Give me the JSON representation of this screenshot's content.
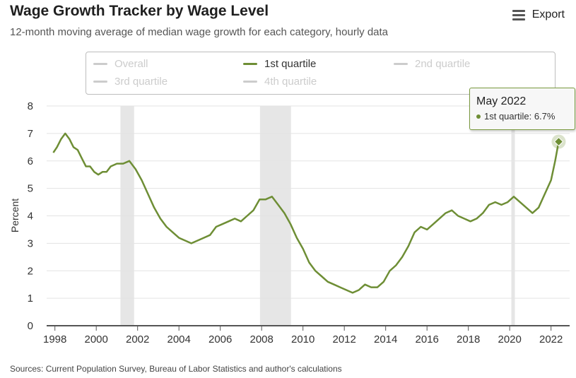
{
  "header": {
    "title": "Wage Growth Tracker by Wage Level",
    "subtitle": "12-month moving average of median wage growth for each category, hourly data",
    "export_label": "Export"
  },
  "legend": {
    "items": [
      {
        "label": "Overall",
        "active": false
      },
      {
        "label": "1st quartile",
        "active": true
      },
      {
        "label": "2nd quartile",
        "active": false
      },
      {
        "label": "3rd quartile",
        "active": false
      },
      {
        "label": "4th quartile",
        "active": false
      }
    ]
  },
  "tooltip": {
    "title": "May 2022",
    "series_label": "1st quartile: 6.7%"
  },
  "source": "Sources: Current Population Survey, Bureau of Labor Statistics and author's calculations",
  "colors": {
    "series": "#6e8e35",
    "recession": "#e6e6e6",
    "grid": "#e3e3e3",
    "axis": "#555555"
  },
  "chart_data": {
    "type": "line",
    "title": "Wage Growth Tracker by Wage Level",
    "ylabel": "Percent",
    "xlabel": "",
    "ylim": [
      0,
      8
    ],
    "xlim": [
      1997.6,
      2022.9
    ],
    "yticks": [
      0,
      1,
      2,
      3,
      4,
      5,
      6,
      7,
      8
    ],
    "xticks": [
      1998,
      2000,
      2002,
      2004,
      2006,
      2008,
      2010,
      2012,
      2014,
      2016,
      2018,
      2020,
      2022
    ],
    "grid": true,
    "recessions": [
      [
        2001.17,
        2001.83
      ],
      [
        2007.92,
        2009.42
      ],
      [
        2020.08,
        2020.25
      ]
    ],
    "series": [
      {
        "name": "1st quartile",
        "x": [
          1997.92,
          1998.1,
          1998.3,
          1998.5,
          1998.7,
          1998.9,
          1999.1,
          1999.3,
          1999.5,
          1999.7,
          1999.9,
          2000.1,
          2000.3,
          2000.5,
          2000.7,
          2001.0,
          2001.3,
          2001.6,
          2001.9,
          2002.2,
          2002.5,
          2002.8,
          2003.1,
          2003.4,
          2003.7,
          2004.0,
          2004.3,
          2004.6,
          2004.9,
          2005.2,
          2005.5,
          2005.8,
          2006.1,
          2006.4,
          2006.7,
          2007.0,
          2007.3,
          2007.6,
          2007.9,
          2008.2,
          2008.5,
          2008.8,
          2009.1,
          2009.4,
          2009.7,
          2010.0,
          2010.3,
          2010.6,
          2010.9,
          2011.2,
          2011.5,
          2011.8,
          2012.1,
          2012.4,
          2012.7,
          2013.0,
          2013.3,
          2013.6,
          2013.9,
          2014.2,
          2014.5,
          2014.8,
          2015.1,
          2015.4,
          2015.7,
          2016.0,
          2016.3,
          2016.6,
          2016.9,
          2017.2,
          2017.5,
          2017.8,
          2018.1,
          2018.4,
          2018.7,
          2019.0,
          2019.3,
          2019.6,
          2019.9,
          2020.2,
          2020.5,
          2020.8,
          2021.1,
          2021.4,
          2021.7,
          2022.0,
          2022.2,
          2022.37
        ],
        "values": [
          6.3,
          6.5,
          6.8,
          7.0,
          6.8,
          6.5,
          6.4,
          6.1,
          5.8,
          5.8,
          5.6,
          5.5,
          5.6,
          5.6,
          5.8,
          5.9,
          5.9,
          6.0,
          5.7,
          5.3,
          4.8,
          4.3,
          3.9,
          3.6,
          3.4,
          3.2,
          3.1,
          3.0,
          3.1,
          3.2,
          3.3,
          3.6,
          3.7,
          3.8,
          3.9,
          3.8,
          4.0,
          4.2,
          4.6,
          4.6,
          4.7,
          4.4,
          4.1,
          3.7,
          3.2,
          2.8,
          2.3,
          2.0,
          1.8,
          1.6,
          1.5,
          1.4,
          1.3,
          1.2,
          1.3,
          1.5,
          1.4,
          1.4,
          1.6,
          2.0,
          2.2,
          2.5,
          2.9,
          3.4,
          3.6,
          3.5,
          3.7,
          3.9,
          4.1,
          4.2,
          4.0,
          3.9,
          3.8,
          3.9,
          4.1,
          4.4,
          4.5,
          4.4,
          4.5,
          4.7,
          4.5,
          4.3,
          4.1,
          4.3,
          4.8,
          5.3,
          6.0,
          6.7
        ]
      }
    ]
  }
}
